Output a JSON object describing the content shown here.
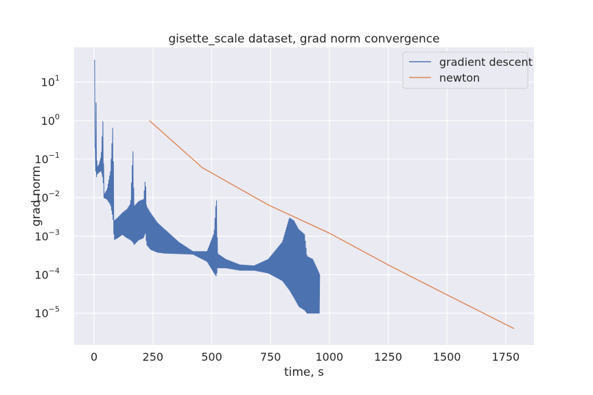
{
  "chart_data": {
    "type": "line",
    "title": "gisette_scale dataset, grad norm convergence",
    "xlabel": "time, s",
    "ylabel": "grad norm",
    "yscale": "log",
    "xlim": [
      -85,
      1870
    ],
    "ylim": [
      1.5e-06,
      80
    ],
    "grid": true,
    "legend_position": "top-right",
    "xticks": [
      0,
      250,
      500,
      750,
      1000,
      1250,
      1500,
      1750
    ],
    "yticks": [
      {
        "value": 1e-05,
        "base": "10",
        "exp": "−5"
      },
      {
        "value": 0.0001,
        "base": "10",
        "exp": "−4"
      },
      {
        "value": 0.001,
        "base": "10",
        "exp": "−3"
      },
      {
        "value": 0.01,
        "base": "10",
        "exp": "−2"
      },
      {
        "value": 0.1,
        "base": "10",
        "exp": "−1"
      },
      {
        "value": 1,
        "base": "10",
        "exp": "0"
      },
      {
        "value": 10,
        "base": "10",
        "exp": "1"
      }
    ],
    "series": [
      {
        "name": "gradient descent",
        "color": "#4c72b0",
        "oscillating": true,
        "upper_envelope": [
          [
            2,
            38
          ],
          [
            5,
            0.15
          ],
          [
            8,
            4.5
          ],
          [
            12,
            0.06
          ],
          [
            20,
            0.07
          ],
          [
            30,
            0.12
          ],
          [
            38,
            1.2
          ],
          [
            42,
            0.012
          ],
          [
            55,
            0.016
          ],
          [
            70,
            0.05
          ],
          [
            80,
            0.9
          ],
          [
            85,
            0.0025
          ],
          [
            100,
            0.003
          ],
          [
            120,
            0.004
          ],
          [
            140,
            0.005
          ],
          [
            155,
            0.007
          ],
          [
            165,
            0.18
          ],
          [
            170,
            0.006
          ],
          [
            190,
            0.008
          ],
          [
            210,
            0.009
          ],
          [
            218,
            0.033
          ],
          [
            223,
            0.006
          ],
          [
            240,
            0.004
          ],
          [
            270,
            0.0022
          ],
          [
            300,
            0.0015
          ],
          [
            360,
            0.0007
          ],
          [
            420,
            0.0004
          ],
          [
            480,
            0.0004
          ],
          [
            510,
            0.0012
          ],
          [
            520,
            0.011
          ],
          [
            525,
            0.00035
          ],
          [
            560,
            0.00025
          ],
          [
            620,
            0.00018
          ],
          [
            680,
            0.00017
          ],
          [
            740,
            0.00025
          ],
          [
            800,
            0.0007
          ],
          [
            830,
            0.003
          ],
          [
            850,
            0.0025
          ],
          [
            870,
            0.0015
          ],
          [
            895,
            0.0011
          ],
          [
            905,
            0.0003
          ],
          [
            930,
            0.00025
          ],
          [
            960,
            0.0001
          ]
        ],
        "lower_envelope": [
          [
            2,
            0.5
          ],
          [
            5,
            0.1
          ],
          [
            8,
            0.03
          ],
          [
            12,
            0.04
          ],
          [
            20,
            0.045
          ],
          [
            30,
            0.05
          ],
          [
            38,
            0.03
          ],
          [
            42,
            0.01
          ],
          [
            55,
            0.009
          ],
          [
            70,
            0.0065
          ],
          [
            80,
            0.003
          ],
          [
            85,
            0.0008
          ],
          [
            100,
            0.0009
          ],
          [
            120,
            0.0011
          ],
          [
            140,
            0.0009
          ],
          [
            155,
            0.0008
          ],
          [
            165,
            0.0007
          ],
          [
            170,
            0.0006
          ],
          [
            190,
            0.0008
          ],
          [
            210,
            0.0009
          ],
          [
            218,
            0.0012
          ],
          [
            223,
            0.0006
          ],
          [
            240,
            0.00045
          ],
          [
            270,
            0.00038
          ],
          [
            300,
            0.00036
          ],
          [
            360,
            0.00035
          ],
          [
            420,
            0.00034
          ],
          [
            480,
            0.00022
          ],
          [
            510,
            0.00011
          ],
          [
            520,
            9e-05
          ],
          [
            525,
            0.00015
          ],
          [
            560,
            0.00015
          ],
          [
            620,
            0.00013
          ],
          [
            680,
            0.00013
          ],
          [
            740,
            0.00011
          ],
          [
            800,
            7e-05
          ],
          [
            830,
            4e-05
          ],
          [
            850,
            2.5e-05
          ],
          [
            870,
            1.5e-05
          ],
          [
            895,
            1.2e-05
          ],
          [
            905,
            1e-05
          ],
          [
            930,
            1e-05
          ],
          [
            960,
            1e-05
          ]
        ]
      },
      {
        "name": "newton",
        "color": "#dd8452",
        "points": [
          [
            235,
            1.0
          ],
          [
            460,
            0.06
          ],
          [
            740,
            0.0065
          ],
          [
            1000,
            0.0012
          ],
          [
            1250,
            0.00018
          ],
          [
            1500,
            3e-05
          ],
          [
            1785,
            4e-06
          ]
        ]
      }
    ]
  }
}
